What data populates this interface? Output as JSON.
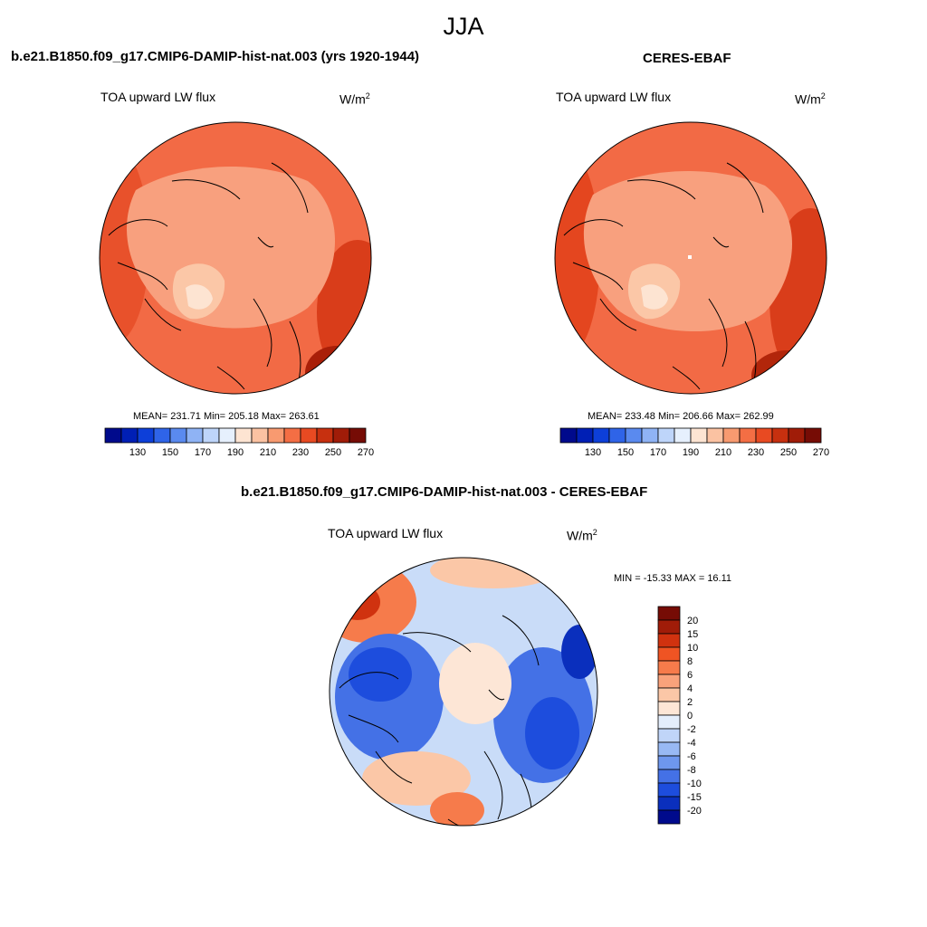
{
  "figure": {
    "season": "JJA",
    "panels": [
      {
        "title": "b.e21.B1850.f09_g17.CMIP6-DAMIP-hist-nat.003 (yrs 1920-1944)",
        "variable": "TOA upward LW flux",
        "units_base": "W/m",
        "units_exp": "2",
        "stats": "MEAN= 231.71  Min= 205.18  Max= 263.61"
      },
      {
        "title": "CERES-EBAF",
        "variable": "TOA upward LW flux",
        "units_base": "W/m",
        "units_exp": "2",
        "stats": "MEAN= 233.48  Min= 206.66  Max= 262.99"
      },
      {
        "title": "b.e21.B1850.f09_g17.CMIP6-DAMIP-hist-nat.003 - CERES-EBAF",
        "variable": "TOA upward LW flux",
        "units_base": "W/m",
        "units_exp": "2",
        "stats": "MIN = -15.33 MAX =  16.11"
      }
    ]
  },
  "colorbar_abs": {
    "labels": [
      "130",
      "150",
      "170",
      "190",
      "210",
      "230",
      "250",
      "270"
    ],
    "colors": [
      "#000a8c",
      "#001fb5",
      "#0d3fd9",
      "#2f64e8",
      "#5a8aef",
      "#8fb3f5",
      "#bed5fa",
      "#e6f0fd",
      "#fde4d2",
      "#fbc2a2",
      "#f89a70",
      "#f46e44",
      "#e84a22",
      "#c7300f",
      "#a01c08",
      "#760c05"
    ]
  },
  "colorbar_diff": {
    "labels": [
      "20",
      "15",
      "10",
      "8",
      "6",
      "4",
      "2",
      "0",
      "-2",
      "-4",
      "-6",
      "-8",
      "-10",
      "-15",
      "-20"
    ],
    "colors": [
      "#760c05",
      "#a01c08",
      "#d0320f",
      "#ef5423",
      "#f67b4b",
      "#f9a27b",
      "#fbc7a7",
      "#fde6d6",
      "#e4eefc",
      "#c0d5f8",
      "#98b9f4",
      "#6e97ee",
      "#4471e6",
      "#1d4ddd",
      "#0a2fbd",
      "#000a8c"
    ]
  },
  "maps": [
    {
      "projection": "north-polar-stereographic",
      "field": "model TOA upward LW flux",
      "ocean_color": "#f26a45",
      "land_color": "#f8a07e"
    },
    {
      "projection": "north-polar-stereographic",
      "field": "observed TOA upward LW flux",
      "ocean_color": "#f26a45",
      "land_color": "#f8a07e"
    },
    {
      "projection": "north-polar-stereographic",
      "field": "model minus observation",
      "ocean_color": "#c9dcf8",
      "land_color": "#7aa0ef"
    }
  ]
}
